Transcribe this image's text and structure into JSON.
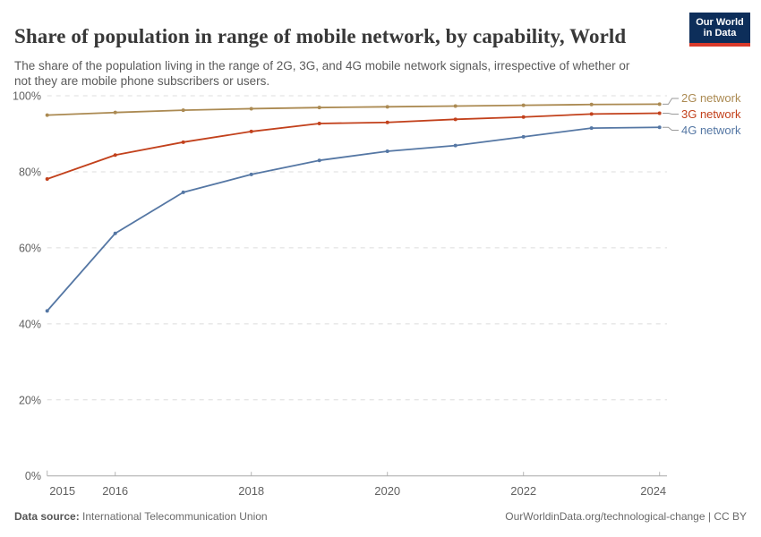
{
  "header": {
    "title": "Share of population in range of mobile network, by capability, World",
    "subtitle": "The share of the population living in the range of 2G, 3G, and 4G mobile network signals, irrespective of whether or not they are mobile phone subscribers or users.",
    "logo": {
      "line1": "Our World",
      "line2": "in Data",
      "bg_color": "#0d2e5a",
      "bar_color": "#d93a2b"
    }
  },
  "chart_data": {
    "type": "line",
    "title": "Share of population in range of mobile network, by capability, World",
    "x": [
      2015,
      2016,
      2017,
      2018,
      2019,
      2020,
      2021,
      2022,
      2023,
      2024
    ],
    "x_ticks": [
      2015,
      2016,
      2018,
      2020,
      2022,
      2024
    ],
    "y_ticks": [
      0,
      20,
      40,
      60,
      80,
      100
    ],
    "y_tick_suffix": "%",
    "ylim": [
      0,
      100
    ],
    "grid": "horizontal-dashed",
    "legend_position": "right",
    "series": [
      {
        "name": "2G network",
        "color": "#ab8a52",
        "values": [
          94.9,
          95.6,
          96.2,
          96.6,
          96.9,
          97.1,
          97.3,
          97.5,
          97.7,
          97.8
        ]
      },
      {
        "name": "3G network",
        "color": "#c2411c",
        "values": [
          78.1,
          84.4,
          87.8,
          90.6,
          92.7,
          93.0,
          93.8,
          94.4,
          95.2,
          95.4
        ]
      },
      {
        "name": "4G network",
        "color": "#5577a4",
        "values": [
          43.4,
          63.8,
          74.6,
          79.3,
          83.0,
          85.4,
          86.9,
          89.2,
          91.5,
          91.7
        ]
      }
    ]
  },
  "footer": {
    "source_label": "Data source:",
    "source_value": " International Telecommunication Union",
    "credit": "OurWorldinData.org/technological-change | CC BY"
  }
}
